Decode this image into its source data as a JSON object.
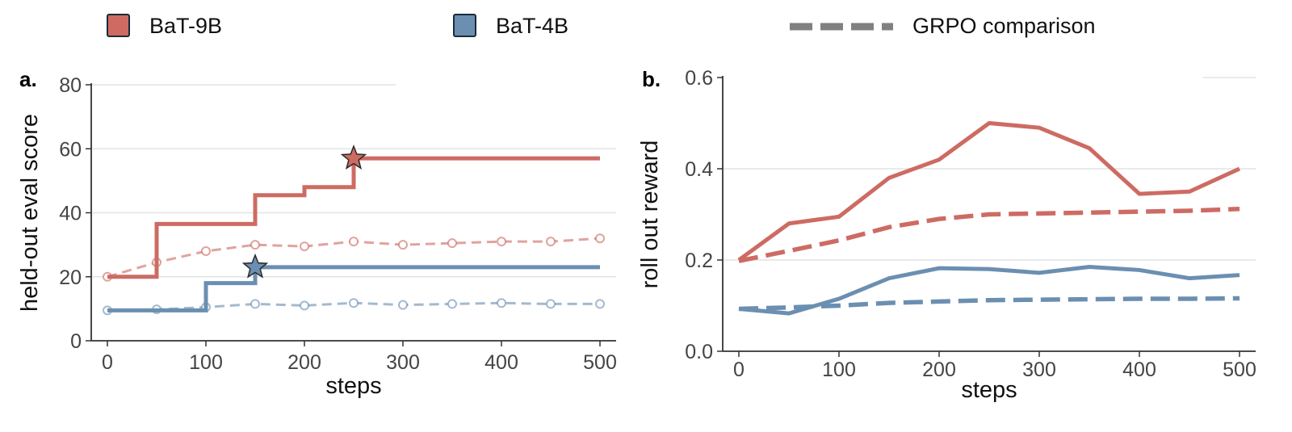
{
  "legend": {
    "placement": "top",
    "entries": [
      {
        "label": "BaT-9B",
        "color": "#cd6b63",
        "marker": "square"
      },
      {
        "label": "BaT-4B",
        "color": "#6b8fb1",
        "marker": "square"
      },
      {
        "label": "GRPO comparison",
        "color": "#808080",
        "marker": "dashed-line"
      }
    ]
  },
  "chart_data": [
    {
      "type": "line",
      "panel_label": "a.",
      "title": "",
      "xlabel": "steps",
      "ylabel": "held-out eval score",
      "xlim": [
        0,
        500
      ],
      "ylim": [
        0,
        80
      ],
      "xticks": [
        0,
        100,
        200,
        300,
        400,
        500
      ],
      "yticks": [
        0,
        20,
        40,
        60,
        80
      ],
      "grid": "horizontal",
      "series": [
        {
          "name": "BaT-9B",
          "style": "step",
          "color": "#cd6b63",
          "x": [
            0,
            50,
            150,
            200,
            250,
            500
          ],
          "y": [
            20,
            36.5,
            45.5,
            48,
            57,
            57
          ],
          "best_marker": {
            "x": 250,
            "y": 57,
            "marker": "star"
          }
        },
        {
          "name": "BaT-4B",
          "style": "step",
          "color": "#6b8fb1",
          "x": [
            0,
            100,
            150,
            500
          ],
          "y": [
            9.5,
            18,
            23,
            23
          ],
          "best_marker": {
            "x": 150,
            "y": 23,
            "marker": "star"
          }
        },
        {
          "name": "BaT-9B GRPO comparison",
          "style": "dashed-markers",
          "color": "#cd6b63",
          "x": [
            0,
            50,
            100,
            150,
            200,
            250,
            300,
            350,
            400,
            450,
            500
          ],
          "y": [
            20,
            24.5,
            28,
            30,
            29.5,
            31,
            30,
            30.5,
            31,
            31,
            32
          ]
        },
        {
          "name": "BaT-4B GRPO comparison",
          "style": "dashed-markers",
          "color": "#6b8fb1",
          "x": [
            0,
            50,
            100,
            150,
            200,
            250,
            300,
            350,
            400,
            450,
            500
          ],
          "y": [
            9.5,
            9.8,
            10.5,
            11.5,
            11,
            11.8,
            11.2,
            11.5,
            11.8,
            11.5,
            11.5
          ]
        }
      ]
    },
    {
      "type": "line",
      "panel_label": "b.",
      "title": "",
      "xlabel": "steps",
      "ylabel": "roll out reward",
      "xlim": [
        0,
        500
      ],
      "ylim": [
        0,
        0.6
      ],
      "xticks": [
        0,
        100,
        200,
        300,
        400,
        500
      ],
      "yticks": [
        0.0,
        0.2,
        0.4,
        0.6
      ],
      "ytick_labels": [
        "0.0",
        "0.2",
        "0.4",
        "0.6"
      ],
      "grid": "horizontal",
      "series": [
        {
          "name": "BaT-9B",
          "style": "solid",
          "color": "#cd6b63",
          "x": [
            0,
            50,
            100,
            150,
            200,
            250,
            300,
            350,
            400,
            450,
            500
          ],
          "y": [
            0.2,
            0.28,
            0.295,
            0.38,
            0.42,
            0.5,
            0.49,
            0.445,
            0.345,
            0.35,
            0.4
          ]
        },
        {
          "name": "BaT-9B GRPO comparison",
          "style": "dashed",
          "color": "#cd6b63",
          "x": [
            0,
            50,
            100,
            150,
            200,
            250,
            300,
            350,
            400,
            450,
            500
          ],
          "y": [
            0.198,
            0.22,
            0.243,
            0.272,
            0.29,
            0.3,
            0.302,
            0.304,
            0.306,
            0.308,
            0.312
          ]
        },
        {
          "name": "BaT-4B",
          "style": "solid",
          "color": "#6b8fb1",
          "x": [
            0,
            50,
            100,
            150,
            200,
            250,
            300,
            350,
            400,
            450,
            500
          ],
          "y": [
            0.093,
            0.083,
            0.115,
            0.16,
            0.182,
            0.18,
            0.172,
            0.185,
            0.178,
            0.16,
            0.167
          ]
        },
        {
          "name": "BaT-4B GRPO comparison",
          "style": "dashed",
          "color": "#6b8fb1",
          "x": [
            0,
            50,
            100,
            150,
            200,
            250,
            300,
            350,
            400,
            450,
            500
          ],
          "y": [
            0.093,
            0.096,
            0.1,
            0.106,
            0.109,
            0.112,
            0.113,
            0.114,
            0.115,
            0.115,
            0.116
          ]
        }
      ]
    }
  ]
}
